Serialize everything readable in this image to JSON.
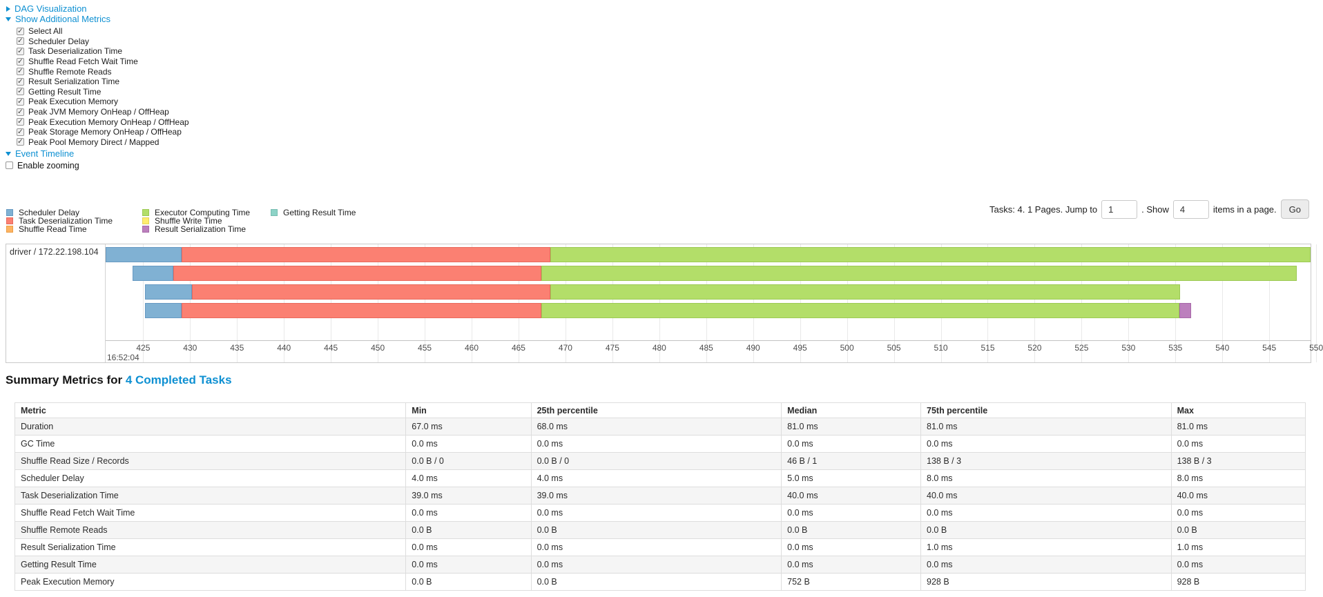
{
  "colors": {
    "link": "#0e90d2",
    "scheduler_delay": {
      "label": "Scheduler Delay",
      "fill": "#80B1D3",
      "border": "#6699c2"
    },
    "task_deserialization": {
      "label": "Task Deserialization Time",
      "fill": "#FB8072",
      "border": "#e8695c"
    },
    "shuffle_read": {
      "label": "Shuffle Read Time",
      "fill": "#FDB462",
      "border": "#eb9c44"
    },
    "executor_computing": {
      "label": "Executor Computing Time",
      "fill": "#B3DE69",
      "border": "#9cc954"
    },
    "shuffle_write": {
      "label": "Shuffle Write Time",
      "fill": "#FFED6F",
      "border": "#e6d358"
    },
    "result_serialization": {
      "label": "Result Serialization Time",
      "fill": "#BC80BD",
      "border": "#a768a8"
    },
    "getting_result": {
      "label": "Getting Result Time",
      "fill": "#8DD3C7",
      "border": "#76bcb0"
    }
  },
  "panels": {
    "dag": {
      "label": "DAG Visualization",
      "expanded": false
    },
    "metrics_toggle": {
      "label": "Show Additional Metrics",
      "expanded": true
    },
    "event_timeline": {
      "label": "Event Timeline",
      "expanded": true
    },
    "enable_zooming": {
      "label": "Enable zooming",
      "checked": false
    }
  },
  "metric_checkboxes": [
    {
      "label": "Select All",
      "checked": true
    },
    {
      "label": "Scheduler Delay",
      "checked": true
    },
    {
      "label": "Task Deserialization Time",
      "checked": true
    },
    {
      "label": "Shuffle Read Fetch Wait Time",
      "checked": true
    },
    {
      "label": "Shuffle Remote Reads",
      "checked": true
    },
    {
      "label": "Result Serialization Time",
      "checked": true
    },
    {
      "label": "Getting Result Time",
      "checked": true
    },
    {
      "label": "Peak Execution Memory",
      "checked": true
    },
    {
      "label": "Peak JVM Memory OnHeap / OffHeap",
      "checked": true
    },
    {
      "label": "Peak Execution Memory OnHeap / OffHeap",
      "checked": true
    },
    {
      "label": "Peak Storage Memory OnHeap / OffHeap",
      "checked": true
    },
    {
      "label": "Peak Pool Memory Direct / Mapped",
      "checked": true
    }
  ],
  "legend": {
    "columns": [
      [
        "scheduler_delay",
        "task_deserialization",
        "shuffle_read"
      ],
      [
        "executor_computing",
        "shuffle_write",
        "result_serialization"
      ],
      [
        "getting_result"
      ]
    ]
  },
  "pager": {
    "tasks_text": "Tasks: 4. 1 Pages. Jump to",
    "jump_value": "1",
    "show_text": ". Show",
    "size_value": "4",
    "items_text": "items in a page.",
    "go_label": "Go"
  },
  "chart_data": {
    "type": "timeline",
    "title": "Event Timeline",
    "group": "driver / 172.22.198.104",
    "x_major_label": "16:52:04",
    "x_unit": "ms",
    "x_range": [
      421,
      549.4
    ],
    "ticks": [
      425,
      430,
      435,
      440,
      445,
      450,
      455,
      460,
      465,
      470,
      475,
      480,
      485,
      490,
      495,
      500,
      505,
      510,
      515,
      520,
      525,
      530,
      535,
      540,
      545,
      550
    ],
    "row_top": 4,
    "row_step": 27,
    "tasks": [
      {
        "segments": [
          {
            "metric": "scheduler_delay",
            "start": 421.0,
            "end": 429.1
          },
          {
            "metric": "task_deserialization",
            "start": 429.1,
            "end": 468.4
          },
          {
            "metric": "executor_computing",
            "start": 468.4,
            "end": 549.4
          }
        ]
      },
      {
        "segments": [
          {
            "metric": "scheduler_delay",
            "start": 423.9,
            "end": 428.2
          },
          {
            "metric": "task_deserialization",
            "start": 428.2,
            "end": 467.4
          },
          {
            "metric": "executor_computing",
            "start": 467.4,
            "end": 547.9
          }
        ]
      },
      {
        "segments": [
          {
            "metric": "scheduler_delay",
            "start": 425.2,
            "end": 430.2
          },
          {
            "metric": "task_deserialization",
            "start": 430.2,
            "end": 468.4
          },
          {
            "metric": "executor_computing",
            "start": 468.4,
            "end": 535.5
          }
        ]
      },
      {
        "segments": [
          {
            "metric": "scheduler_delay",
            "start": 425.2,
            "end": 429.1
          },
          {
            "metric": "task_deserialization",
            "start": 429.1,
            "end": 467.4
          },
          {
            "metric": "executor_computing",
            "start": 467.4,
            "end": 535.4
          },
          {
            "metric": "result_serialization",
            "start": 535.4,
            "end": 536.7
          }
        ]
      }
    ]
  },
  "summary": {
    "heading_prefix": "Summary Metrics for ",
    "heading_link": "4 Completed Tasks",
    "columns": [
      "Metric",
      "Min",
      "25th percentile",
      "Median",
      "75th percentile",
      "Max"
    ],
    "col_widths_pct": [
      30.3,
      9.7,
      19.4,
      10.8,
      19.4,
      10.4
    ],
    "rows": [
      {
        "metric": "Duration",
        "values": [
          "67.0 ms",
          "68.0 ms",
          "81.0 ms",
          "81.0 ms",
          "81.0 ms"
        ]
      },
      {
        "metric": "GC Time",
        "values": [
          "0.0 ms",
          "0.0 ms",
          "0.0 ms",
          "0.0 ms",
          "0.0 ms"
        ]
      },
      {
        "metric": "Shuffle Read Size / Records",
        "values": [
          "0.0 B / 0",
          "0.0 B / 0",
          "46 B / 1",
          "138 B / 3",
          "138 B / 3"
        ]
      },
      {
        "metric": "Scheduler Delay",
        "values": [
          "4.0 ms",
          "4.0 ms",
          "5.0 ms",
          "8.0 ms",
          "8.0 ms"
        ]
      },
      {
        "metric": "Task Deserialization Time",
        "values": [
          "39.0 ms",
          "39.0 ms",
          "40.0 ms",
          "40.0 ms",
          "40.0 ms"
        ]
      },
      {
        "metric": "Shuffle Read Fetch Wait Time",
        "values": [
          "0.0 ms",
          "0.0 ms",
          "0.0 ms",
          "0.0 ms",
          "0.0 ms"
        ]
      },
      {
        "metric": "Shuffle Remote Reads",
        "values": [
          "0.0 B",
          "0.0 B",
          "0.0 B",
          "0.0 B",
          "0.0 B"
        ]
      },
      {
        "metric": "Result Serialization Time",
        "values": [
          "0.0 ms",
          "0.0 ms",
          "0.0 ms",
          "1.0 ms",
          "1.0 ms"
        ]
      },
      {
        "metric": "Getting Result Time",
        "values": [
          "0.0 ms",
          "0.0 ms",
          "0.0 ms",
          "0.0 ms",
          "0.0 ms"
        ]
      },
      {
        "metric": "Peak Execution Memory",
        "values": [
          "0.0 B",
          "0.0 B",
          "752 B",
          "928 B",
          "928 B"
        ]
      }
    ]
  }
}
